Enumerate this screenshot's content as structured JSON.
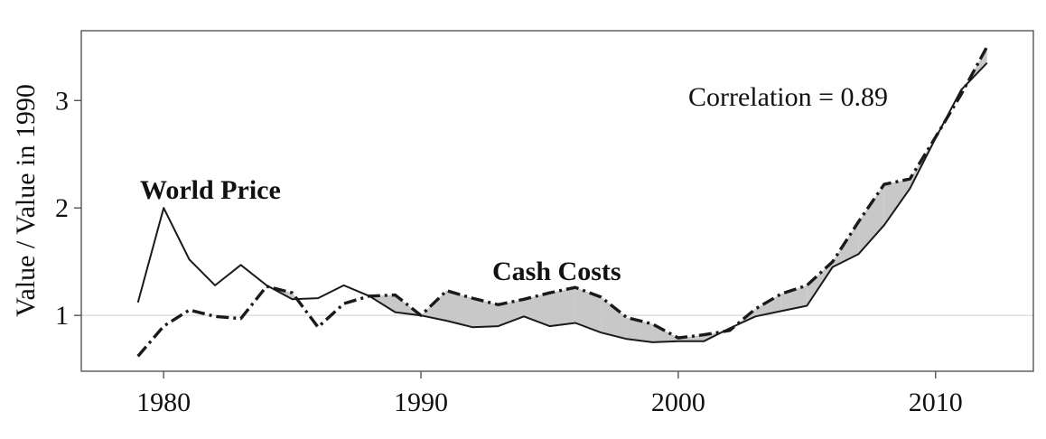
{
  "chart_data": {
    "type": "line",
    "xlabel": "",
    "ylabel": "Value / Value in 1990",
    "xlim": [
      1976.8,
      2013.8
    ],
    "ylim": [
      0.48,
      3.65
    ],
    "xticks": [
      1980,
      1990,
      2000,
      2010
    ],
    "yticks": [
      1,
      2,
      3
    ],
    "grid": "horizontal reference line at y = 1",
    "annotations": {
      "correlation": "Correlation = 0.89",
      "world_price_label": "World Price",
      "cash_costs_label": "Cash Costs"
    },
    "shading": "gray fill where Cash Costs exceed World Price",
    "colors": {
      "lines": "#1a1a1a",
      "fill": "#c8c8c8",
      "refline": "#d9d9d9"
    },
    "series": [
      {
        "name": "World Price",
        "style": "solid",
        "x": [
          1979,
          1980,
          1981,
          1982,
          1983,
          1984,
          1985,
          1986,
          1987,
          1988,
          1989,
          1990,
          1991,
          1992,
          1993,
          1994,
          1995,
          1996,
          1997,
          1998,
          1999,
          2000,
          2001,
          2002,
          2003,
          2004,
          2005,
          2006,
          2007,
          2008,
          2009,
          2010,
          2011,
          2012
        ],
        "values": [
          1.12,
          2.0,
          1.52,
          1.28,
          1.47,
          1.28,
          1.15,
          1.16,
          1.28,
          1.18,
          1.03,
          1.0,
          0.95,
          0.89,
          0.9,
          0.99,
          0.9,
          0.93,
          0.84,
          0.78,
          0.75,
          0.76,
          0.76,
          0.88,
          0.99,
          1.04,
          1.09,
          1.45,
          1.57,
          1.84,
          2.18,
          2.65,
          3.1,
          3.35
        ]
      },
      {
        "name": "Cash Costs",
        "style": "dash-dot",
        "x": [
          1979,
          1980,
          1981,
          1982,
          1983,
          1984,
          1985,
          1986,
          1987,
          1988,
          1989,
          1990,
          1991,
          1992,
          1993,
          1994,
          1995,
          1996,
          1997,
          1998,
          1999,
          2000,
          2001,
          2002,
          2003,
          2004,
          2005,
          2006,
          2007,
          2008,
          2009,
          2010,
          2011,
          2012
        ],
        "values": [
          0.62,
          0.9,
          1.05,
          0.99,
          0.97,
          1.27,
          1.21,
          0.89,
          1.11,
          1.18,
          1.19,
          1.0,
          1.23,
          1.16,
          1.1,
          1.15,
          1.21,
          1.26,
          1.17,
          0.98,
          0.92,
          0.79,
          0.82,
          0.86,
          1.06,
          1.2,
          1.28,
          1.5,
          1.87,
          2.22,
          2.27,
          2.66,
          3.06,
          3.5
        ]
      }
    ]
  }
}
